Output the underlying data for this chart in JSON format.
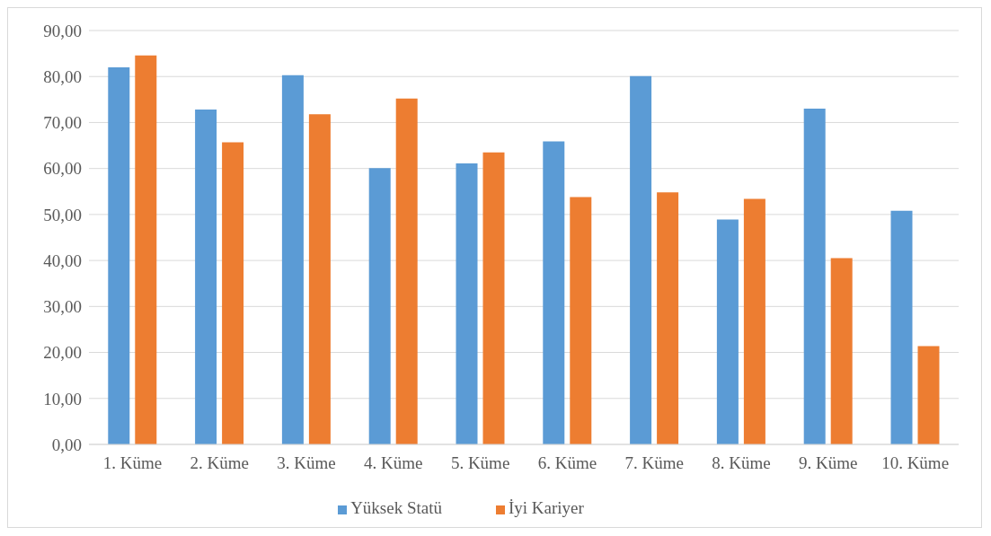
{
  "chart_data": {
    "type": "bar",
    "categories": [
      "1. Küme",
      "2. Küme",
      "3. Küme",
      "4. Küme",
      "5. Küme",
      "6. Küme",
      "7. Küme",
      "8. Küme",
      "9. Küme",
      "10. Küme"
    ],
    "series": [
      {
        "name": "Yüksek Statü",
        "color": "#5b9bd5",
        "values": [
          82.0,
          72.8,
          80.3,
          60.1,
          61.1,
          65.9,
          80.1,
          48.9,
          73.0,
          50.8
        ]
      },
      {
        "name": "İyi Kariyer",
        "color": "#ed7d31",
        "values": [
          84.6,
          65.7,
          71.8,
          75.2,
          63.5,
          53.8,
          54.8,
          53.4,
          40.5,
          21.4
        ]
      }
    ],
    "ylim": [
      0,
      90
    ],
    "yticks": [
      {
        "value": 0,
        "label": "0,00"
      },
      {
        "value": 10,
        "label": "10,00"
      },
      {
        "value": 20,
        "label": "20,00"
      },
      {
        "value": 30,
        "label": "30,00"
      },
      {
        "value": 40,
        "label": "40,00"
      },
      {
        "value": 50,
        "label": "50,00"
      },
      {
        "value": 60,
        "label": "60,00"
      },
      {
        "value": 70,
        "label": "70,00"
      },
      {
        "value": 80,
        "label": "80,00"
      },
      {
        "value": 90,
        "label": "90,00"
      }
    ],
    "grid": "y",
    "legend": "bottom"
  }
}
